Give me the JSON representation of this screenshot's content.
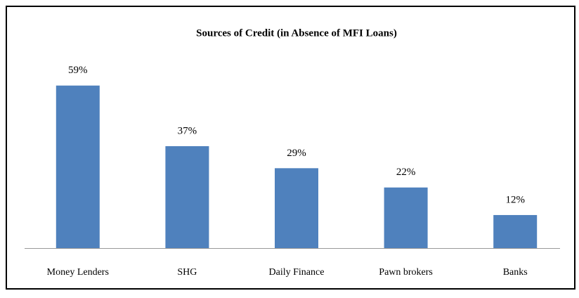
{
  "chart_data": {
    "type": "bar",
    "title": "Sources of Credit (in Absence of MFI Loans)",
    "categories": [
      "Money Lenders",
      "SHG",
      "Daily Finance",
      "Pawn brokers",
      "Banks"
    ],
    "values": [
      59,
      37,
      29,
      22,
      12
    ],
    "value_labels": [
      "59%",
      "37%",
      "29%",
      "22%",
      "12%"
    ],
    "color": "#4f81bd"
  }
}
